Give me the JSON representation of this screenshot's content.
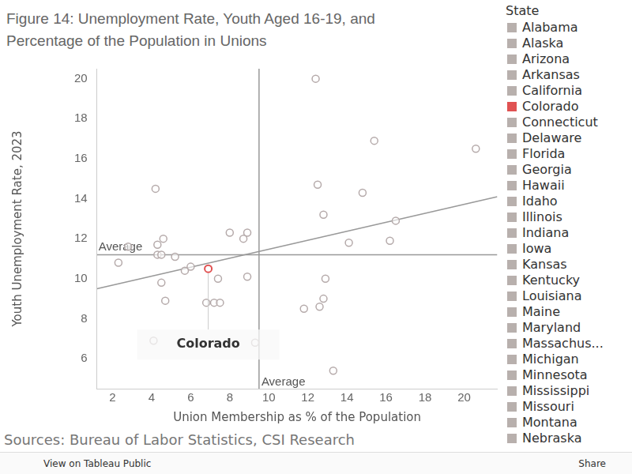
{
  "chart_data": {
    "type": "scatter",
    "title": "Figure 14: Unemployment Rate, Youth Aged 16-19, and Percentage of the Population in Unions",
    "x_label": "Union Membership as % of the Population",
    "y_label": "Youth Unemployment Rate, 2023",
    "source": "Sources: Bureau of Labor Statistics, CSI Research",
    "footer": {
      "left": "View on Tableau Public",
      "right": "Share"
    },
    "xlim": [
      1.2,
      21.7
    ],
    "xticks": [
      2,
      4,
      6,
      8,
      10,
      12,
      14,
      16,
      18,
      20
    ],
    "ylim": [
      4.5,
      20.5
    ],
    "yticks": [
      6,
      8,
      10,
      12,
      14,
      16,
      18,
      20
    ],
    "grid": false,
    "marker": "circle",
    "series": [
      {
        "name": "Colorado",
        "color": "#e05252",
        "x": [
          6.9
        ],
        "y": [
          10.5
        ]
      },
      {
        "color": "#b5aaaa",
        "x": [
          12.4,
          15.4,
          20.6,
          4.2,
          12.5,
          14.8,
          12.8,
          16.5,
          8.0,
          8.9,
          8.7,
          4.6,
          2.8,
          4.3,
          14.1,
          16.2,
          4.3,
          4.5,
          5.2,
          2.3,
          6.0,
          5.7,
          4.5,
          7.4,
          8.9,
          12.9,
          4.7,
          6.8,
          7.2,
          7.5,
          12.8,
          12.6,
          11.8,
          4.1,
          9.3,
          13.3
        ],
        "y": [
          20.0,
          16.9,
          16.5,
          14.5,
          14.7,
          14.3,
          13.2,
          12.9,
          12.3,
          12.3,
          12.0,
          12.0,
          11.6,
          11.7,
          11.8,
          11.9,
          11.2,
          11.2,
          11.1,
          10.8,
          10.6,
          10.4,
          9.8,
          10.0,
          10.1,
          10.0,
          8.9,
          8.8,
          8.8,
          8.8,
          9.0,
          8.6,
          8.5,
          6.9,
          6.8,
          5.4
        ]
      }
    ],
    "trend_line": {
      "color": "#999999",
      "x": [
        1.2,
        21.7
      ],
      "y": [
        9.5,
        14.1
      ]
    },
    "average_lines": {
      "label": "Average",
      "color": "#999999",
      "x": 9.5,
      "y": 11.2
    },
    "annotation": {
      "text": "Colorado"
    },
    "legend_title": "State",
    "legend_items": [
      {
        "name": "Alabama",
        "color": "#b8b0ad"
      },
      {
        "name": "Alaska",
        "color": "#b8b0ad"
      },
      {
        "name": "Arizona",
        "color": "#b8b0ad"
      },
      {
        "name": "Arkansas",
        "color": "#b8b0ad"
      },
      {
        "name": "California",
        "color": "#b8b0ad"
      },
      {
        "name": "Colorado",
        "color": "#e05252"
      },
      {
        "name": "Connecticut",
        "color": "#b8b0ad"
      },
      {
        "name": "Delaware",
        "color": "#b8b0ad"
      },
      {
        "name": "Florida",
        "color": "#b8b0ad"
      },
      {
        "name": "Georgia",
        "color": "#b8b0ad"
      },
      {
        "name": "Hawaii",
        "color": "#b8b0ad"
      },
      {
        "name": "Idaho",
        "color": "#b8b0ad"
      },
      {
        "name": "Illinois",
        "color": "#b8b0ad"
      },
      {
        "name": "Indiana",
        "color": "#b8b0ad"
      },
      {
        "name": "Iowa",
        "color": "#b8b0ad"
      },
      {
        "name": "Kansas",
        "color": "#b8b0ad"
      },
      {
        "name": "Kentucky",
        "color": "#b8b0ad"
      },
      {
        "name": "Louisiana",
        "color": "#b8b0ad"
      },
      {
        "name": "Maine",
        "color": "#b8b0ad"
      },
      {
        "name": "Maryland",
        "color": "#b8b0ad"
      },
      {
        "name": "Massachus...",
        "color": "#b8b0ad"
      },
      {
        "name": "Michigan",
        "color": "#b8b0ad"
      },
      {
        "name": "Minnesota",
        "color": "#b8b0ad"
      },
      {
        "name": "Mississippi",
        "color": "#b8b0ad"
      },
      {
        "name": "Missouri",
        "color": "#b8b0ad"
      },
      {
        "name": "Montana",
        "color": "#b8b0ad"
      },
      {
        "name": "Nebraska",
        "color": "#b8b0ad"
      }
    ]
  }
}
